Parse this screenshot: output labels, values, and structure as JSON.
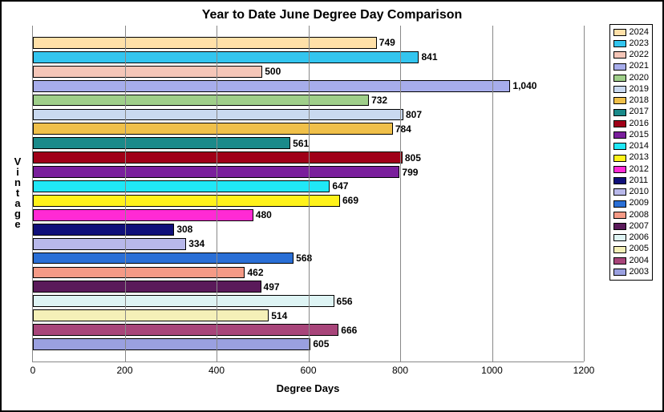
{
  "title": "Year to Date June Degree Day Comparison",
  "title_fontsize": 16,
  "ylabel_text": "Vintage",
  "xlabel_text": "Degree Days",
  "label_fontsize": 13,
  "type": "horizontal-bar",
  "xlim": [
    0,
    1200
  ],
  "xtick_step": 200,
  "xticks": [
    0,
    200,
    400,
    600,
    800,
    1000,
    1200
  ],
  "tick_fontsize": 12,
  "background_color": "#ffffff",
  "grid_color": "#888888",
  "bar_border_color": "#000000",
  "series": [
    {
      "year": "2024",
      "value": 749,
      "label": "749",
      "color": "#ffe0a8"
    },
    {
      "year": "2023",
      "value": 841,
      "label": "841",
      "color": "#33c5ef"
    },
    {
      "year": "2022",
      "value": 500,
      "label": "500",
      "color": "#f5c6b8"
    },
    {
      "year": "2021",
      "value": 1040,
      "label": "1,040",
      "color": "#a7adeb"
    },
    {
      "year": "2020",
      "value": 732,
      "label": "732",
      "color": "#9fcf8a"
    },
    {
      "year": "2019",
      "value": 807,
      "label": "807",
      "color": "#c9d9f0"
    },
    {
      "year": "2018",
      "value": 784,
      "label": "784",
      "color": "#f0c04a"
    },
    {
      "year": "2017",
      "value": 561,
      "label": "561",
      "color": "#1a8a8a"
    },
    {
      "year": "2016",
      "value": 805,
      "label": "805",
      "color": "#a00018"
    },
    {
      "year": "2015",
      "value": 799,
      "label": "799",
      "color": "#7a1f9c"
    },
    {
      "year": "2014",
      "value": 647,
      "label": "647",
      "color": "#20e8f7"
    },
    {
      "year": "2013",
      "value": 669,
      "label": "669",
      "color": "#fff21a"
    },
    {
      "year": "2012",
      "value": 480,
      "label": "480",
      "color": "#ff2ad4"
    },
    {
      "year": "2011",
      "value": 308,
      "label": "308",
      "color": "#10107a"
    },
    {
      "year": "2010",
      "value": 334,
      "label": "334",
      "color": "#b8b8ea"
    },
    {
      "year": "2009",
      "value": 568,
      "label": "568",
      "color": "#2a6fd6"
    },
    {
      "year": "2008",
      "value": 462,
      "label": "462",
      "color": "#f59a86"
    },
    {
      "year": "2007",
      "value": 497,
      "label": "497",
      "color": "#5a1a5a"
    },
    {
      "year": "2006",
      "value": 656,
      "label": "656",
      "color": "#def4f4"
    },
    {
      "year": "2005",
      "value": 514,
      "label": "514",
      "color": "#f5f0b8"
    },
    {
      "year": "2004",
      "value": 666,
      "label": "666",
      "color": "#a8457a"
    },
    {
      "year": "2003",
      "value": 605,
      "label": "605",
      "color": "#9aa0e0"
    }
  ]
}
